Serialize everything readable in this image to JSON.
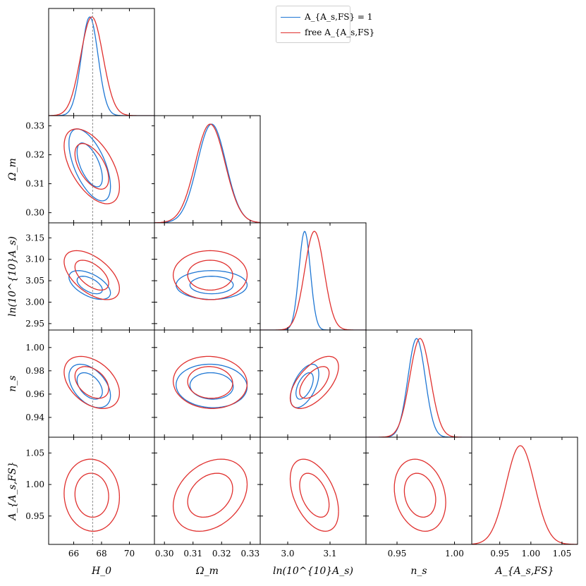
{
  "colors": {
    "blue": "#1f77d4",
    "red": "#e0302e",
    "ref": "#8c8c8c"
  },
  "legend": {
    "entries": [
      {
        "label": "A_{A_s,FS} = 1",
        "color": "#1f77d4"
      },
      {
        "label": "free A_{A_s,FS}",
        "color": "#e0302e"
      }
    ],
    "placement": "top-right"
  },
  "chart_data": {
    "type": "triangle-corner",
    "params": [
      {
        "key": "H0",
        "label": "H_0",
        "range": [
          64.2,
          71.8
        ],
        "ticks": [
          "66",
          "68",
          "70"
        ],
        "tick_values": [
          66,
          68,
          70
        ]
      },
      {
        "key": "Om",
        "label": "Ω_m",
        "range": [
          0.2965,
          0.3335
        ],
        "ticks": [
          "0.30",
          "0.31",
          "0.32",
          "0.33"
        ],
        "tick_values": [
          0.3,
          0.31,
          0.32,
          0.33
        ]
      },
      {
        "key": "lnAs",
        "label": "ln(10^{10}A_s)",
        "range": [
          2.935,
          3.185
        ],
        "ticks": [
          "2.95",
          "3.00",
          "3.05",
          "3.10",
          "3.15"
        ],
        "tick_values": [
          2.95,
          3.0,
          3.05,
          3.1,
          3.15
        ],
        "xticks": [
          "3.0",
          "3.1"
        ],
        "xtick_values": [
          3.0,
          3.1
        ]
      },
      {
        "key": "ns",
        "label": "n_s",
        "range": [
          0.923,
          1.015
        ],
        "ticks": [
          "0.94",
          "0.96",
          "0.98",
          "1.00"
        ],
        "tick_values": [
          0.94,
          0.96,
          0.98,
          1.0
        ],
        "xticks": [
          "0.95",
          "1.00"
        ],
        "xtick_values": [
          0.95,
          1.0
        ]
      },
      {
        "key": "Afs",
        "label": "A_{A_s,FS}",
        "range": [
          0.905,
          1.075
        ],
        "ticks": [
          "0.95",
          "1.00",
          "1.05"
        ],
        "tick_values": [
          0.95,
          1.0,
          1.05
        ]
      }
    ],
    "reference": {
      "param": "H0",
      "value": 67.36
    },
    "series": [
      {
        "name": "A_{A_s,FS} = 1",
        "color": "#1f77d4",
        "means": {
          "H0": 67.15,
          "Om": 0.3165,
          "lnAs": 3.04,
          "ns": 0.967
        },
        "sigmas": {
          "H0": 0.6,
          "Om": 0.005,
          "lnAs": 0.0135,
          "ns": 0.0075
        },
        "corr": {
          "H0|Om": -0.6,
          "H0|lnAs": -0.55,
          "H0|ns": -0.45,
          "Om|lnAs": 0.0,
          "Om|ns": -0.05,
          "lnAs|ns": 0.55
        }
      },
      {
        "name": "free A_{A_s,FS}",
        "color": "#e0302e",
        "means": {
          "H0": 67.3,
          "Om": 0.316,
          "lnAs": 3.063,
          "ns": 0.97,
          "Afs": 0.983
        },
        "sigmas": {
          "H0": 0.8,
          "Om": 0.0052,
          "lnAs": 0.023,
          "ns": 0.009,
          "Afs": 0.023
        },
        "corr": {
          "H0|Om": -0.55,
          "H0|lnAs": -0.55,
          "H0|ns": -0.4,
          "Om|lnAs": 0.0,
          "Om|ns": -0.05,
          "lnAs|ns": 0.6,
          "H0|Afs": -0.05,
          "Om|Afs": 0.3,
          "lnAs|Afs": -0.45,
          "ns|Afs": -0.2
        }
      }
    ]
  }
}
